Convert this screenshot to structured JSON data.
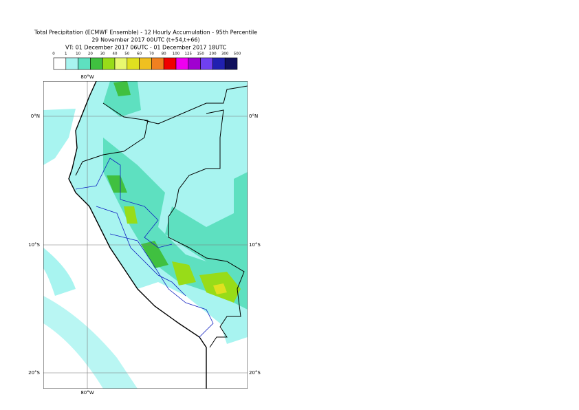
{
  "title": [
    "Total Precipitation (ECMWF Ensemble) - 12 Hourly Accumulation - 95th Percentile",
    "29 November 2017 00UTC (t+54,t+66)",
    "VT: 01 December 2017 06UTC - 01 December 2017 18UTC"
  ],
  "legend": {
    "levels": [
      0,
      1,
      10,
      20,
      30,
      40,
      50,
      60,
      70,
      80,
      100,
      125,
      150,
      200,
      300,
      500
    ],
    "colors": [
      "#ffffff",
      "#a8f4f0",
      "#5ee0c0",
      "#40c040",
      "#98dc18",
      "#e8f870",
      "#e0e020",
      "#f0c020",
      "#f08020",
      "#f00000",
      "#f000f0",
      "#a000d0",
      "#7040f0",
      "#2020b0",
      "#10105c"
    ]
  },
  "map": {
    "lon_labels": [
      "80°W"
    ],
    "lat_labels": [
      "0°N",
      "10°S",
      "20°S"
    ]
  }
}
